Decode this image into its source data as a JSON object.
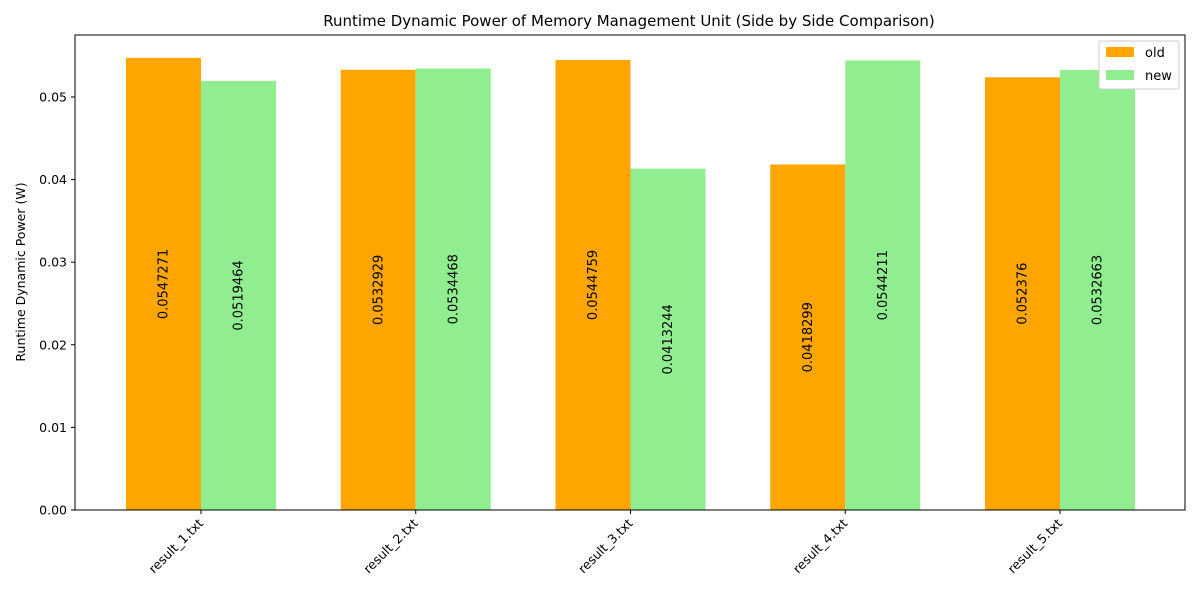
{
  "chart_data": {
    "type": "bar",
    "title": "Runtime Dynamic Power of Memory Management Unit (Side by Side Comparison)",
    "xlabel": "",
    "ylabel": "Runtime Dynamic Power (W)",
    "categories": [
      "result_1.txt",
      "result_2.txt",
      "result_3.txt",
      "result_4.txt",
      "result_5.txt"
    ],
    "series": [
      {
        "name": "old",
        "color": "#FFA500",
        "values": [
          0.0547271,
          0.0532929,
          0.0544759,
          0.0418299,
          0.052376
        ],
        "labels": [
          "0.0547271",
          "0.0532929",
          "0.0544759",
          "0.0418299",
          "0.052376"
        ]
      },
      {
        "name": "new",
        "color": "#90EE90",
        "values": [
          0.0519464,
          0.0534468,
          0.0413244,
          0.0544211,
          0.0532663
        ],
        "labels": [
          "0.0519464",
          "0.0534468",
          "0.0413244",
          "0.0544211",
          "0.0532663"
        ]
      }
    ],
    "ylim": [
      0,
      0.0575
    ],
    "yticks": [
      0.0,
      0.01,
      0.02,
      0.03,
      0.04,
      0.05
    ],
    "ytick_labels": [
      "0.00",
      "0.01",
      "0.02",
      "0.03",
      "0.04",
      "0.05"
    ],
    "grid": false,
    "legend_position": "top-right"
  }
}
